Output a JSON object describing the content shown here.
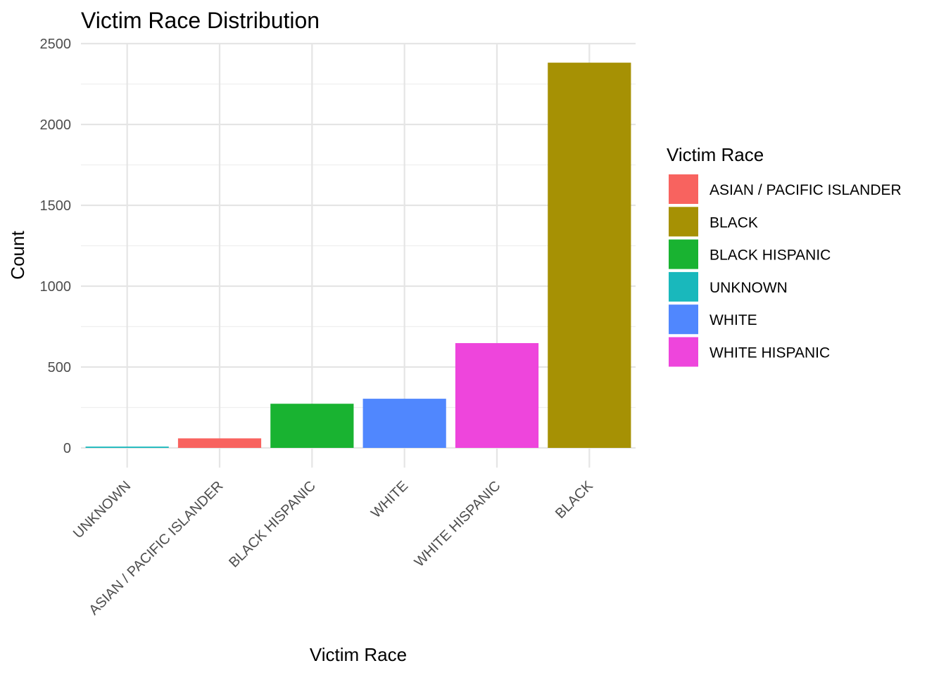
{
  "chart_data": {
    "type": "bar",
    "title": "Victim Race Distribution",
    "xlabel": "Victim Race",
    "ylabel": "Count",
    "categories": [
      "UNKNOWN",
      "ASIAN / PACIFIC ISLANDER",
      "BLACK HISPANIC",
      "WHITE",
      "WHITE HISPANIC",
      "BLACK"
    ],
    "values": [
      8,
      59,
      273,
      304,
      648,
      2382
    ],
    "colors": [
      "#19B8BC",
      "#F8635F",
      "#19B331",
      "#5087FE",
      "#EE45DC",
      "#A69104"
    ],
    "ylim": [
      0,
      2500
    ],
    "yticks": [
      0,
      500,
      1000,
      1500,
      2000,
      2500
    ],
    "grid": true,
    "legend": {
      "title": "Victim Race",
      "position": "right",
      "entries": [
        {
          "label": "ASIAN / PACIFIC ISLANDER",
          "color": "#F8635F"
        },
        {
          "label": "BLACK",
          "color": "#A69104"
        },
        {
          "label": "BLACK HISPANIC",
          "color": "#19B331"
        },
        {
          "label": "UNKNOWN",
          "color": "#19B8BC"
        },
        {
          "label": "WHITE",
          "color": "#5087FE"
        },
        {
          "label": "WHITE HISPANIC",
          "color": "#EE45DC"
        }
      ]
    }
  }
}
